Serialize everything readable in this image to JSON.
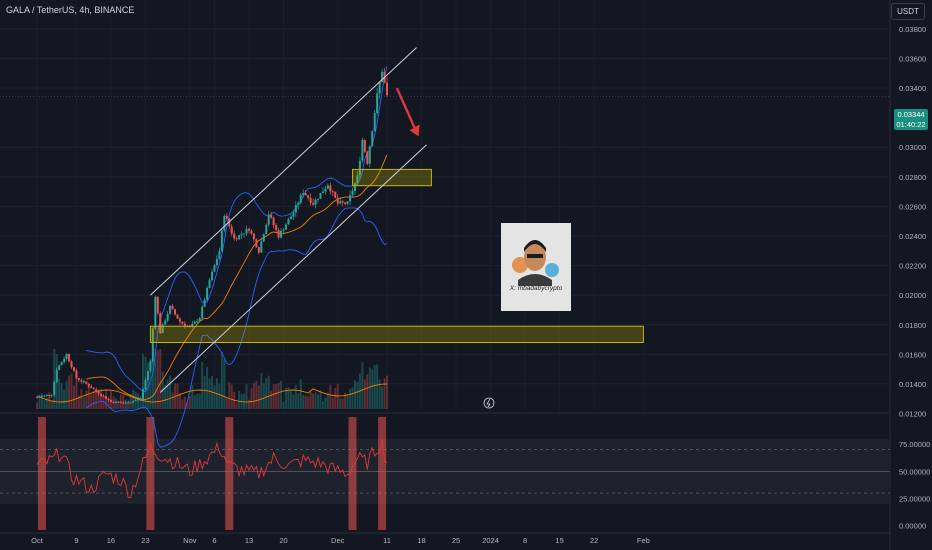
{
  "header": {
    "symbol_title": "GALA / TetherUS, 4h, BINANCE",
    "currency": "USDT"
  },
  "price_tag": {
    "price": "0.03344",
    "countdown": "01:40:22"
  },
  "watermark_text": "X: mbadabycrypto",
  "colors": {
    "background": "#131722",
    "up": "#26a69a",
    "down": "#ef5350",
    "bb_basis": "#f57c00",
    "bb_band": "#2962ff",
    "zone": "#c8b400",
    "rsi_line": "#e03a3a",
    "arrow": "#e0393a"
  },
  "chart_data": [
    {
      "type": "line",
      "title": "GALA / TetherUS, 4h, BINANCE",
      "xlabel": "",
      "ylabel": "",
      "x_ticks": [
        "Oct",
        "9",
        "16",
        "23",
        "Nov",
        "6",
        "13",
        "20",
        "Dec",
        "11",
        "18",
        "25",
        "2024",
        "8",
        "15",
        "22",
        "Feb"
      ],
      "y_ticks": [
        "0.03800",
        "0.03600",
        "0.03400",
        "0.03000",
        "0.02800",
        "0.02600",
        "0.02400",
        "0.02200",
        "0.02000",
        "0.01800",
        "0.01600",
        "0.01400",
        "0.01200"
      ],
      "ylim": [
        0.0119,
        0.0386
      ],
      "last_price": 0.03344,
      "series": [],
      "price_path": [
        [
          "Oct 1",
          0.0131
        ],
        [
          "Oct 4",
          0.0133
        ],
        [
          "Oct 5",
          0.015
        ],
        [
          "Oct 7",
          0.016
        ],
        [
          "Oct 9",
          0.0144
        ],
        [
          "Oct 11",
          0.014
        ],
        [
          "Oct 13",
          0.0135
        ],
        [
          "Oct 16",
          0.0128
        ],
        [
          "Oct 19",
          0.0127
        ],
        [
          "Oct 22",
          0.013
        ],
        [
          "Oct 24",
          0.0155
        ],
        [
          "Oct 25",
          0.02
        ],
        [
          "Oct 26",
          0.0175
        ],
        [
          "Oct 28",
          0.0192
        ],
        [
          "Oct 30",
          0.0182
        ],
        [
          "Nov 1",
          0.0178
        ],
        [
          "Nov 3",
          0.0185
        ],
        [
          "Nov 5",
          0.021
        ],
        [
          "Nov 7",
          0.023
        ],
        [
          "Nov 8",
          0.0255
        ],
        [
          "Nov 10",
          0.0238
        ],
        [
          "Nov 13",
          0.0245
        ],
        [
          "Nov 15",
          0.023
        ],
        [
          "Nov 17",
          0.0255
        ],
        [
          "Nov 19",
          0.024
        ],
        [
          "Nov 22",
          0.0256
        ],
        [
          "Nov 24",
          0.027
        ],
        [
          "Nov 26",
          0.0262
        ],
        [
          "Nov 29",
          0.0275
        ],
        [
          "Dec 1",
          0.0262
        ],
        [
          "Dec 3",
          0.0262
        ],
        [
          "Dec 5",
          0.028
        ],
        [
          "Dec 6",
          0.0305
        ],
        [
          "Dec 7",
          0.029
        ],
        [
          "Dec 9",
          0.0335
        ],
        [
          "Dec 10",
          0.0352
        ],
        [
          "Dec 11",
          0.03344
        ]
      ],
      "zones": [
        {
          "from": 0.0274,
          "to": 0.0285,
          "start": "Dec 4",
          "end": "Dec 20"
        },
        {
          "from": 0.0168,
          "to": 0.0179,
          "start": "Oct 24",
          "end": "Feb 1"
        }
      ]
    },
    {
      "type": "line",
      "title": "",
      "y_ticks": [
        "75.00000",
        "50.00000",
        "25.00000",
        "0.00000"
      ],
      "ylim": [
        -4,
        100
      ],
      "overbought": 70,
      "oversold": 30,
      "series": [],
      "rsi_path": [
        [
          "Oct 1",
          55
        ],
        [
          "Oct 4",
          60
        ],
        [
          "Oct 6",
          68
        ],
        [
          "Oct 8",
          45
        ],
        [
          "Oct 10",
          40
        ],
        [
          "Oct 12",
          33
        ],
        [
          "Oct 15",
          48
        ],
        [
          "Oct 18",
          42
        ],
        [
          "Oct 20",
          30
        ],
        [
          "Oct 22",
          52
        ],
        [
          "Oct 24",
          72
        ],
        [
          "Oct 26",
          65
        ],
        [
          "Oct 29",
          58
        ],
        [
          "Nov 1",
          50
        ],
        [
          "Nov 4",
          60
        ],
        [
          "Nov 7",
          72
        ],
        [
          "Nov 9",
          55
        ],
        [
          "Nov 12",
          50
        ],
        [
          "Nov 15",
          48
        ],
        [
          "Nov 18",
          62
        ],
        [
          "Nov 21",
          55
        ],
        [
          "Nov 24",
          60
        ],
        [
          "Nov 27",
          58
        ],
        [
          "Nov 30",
          52
        ],
        [
          "Dec 3",
          48
        ],
        [
          "Dec 5",
          62
        ],
        [
          "Dec 7",
          58
        ],
        [
          "Dec 9",
          72
        ],
        [
          "Dec 10",
          75
        ],
        [
          "Dec 11",
          58
        ]
      ],
      "highlights": [
        "Oct 2",
        "Oct 24",
        "Nov 9",
        "Dec 4",
        "Dec 10"
      ]
    }
  ]
}
